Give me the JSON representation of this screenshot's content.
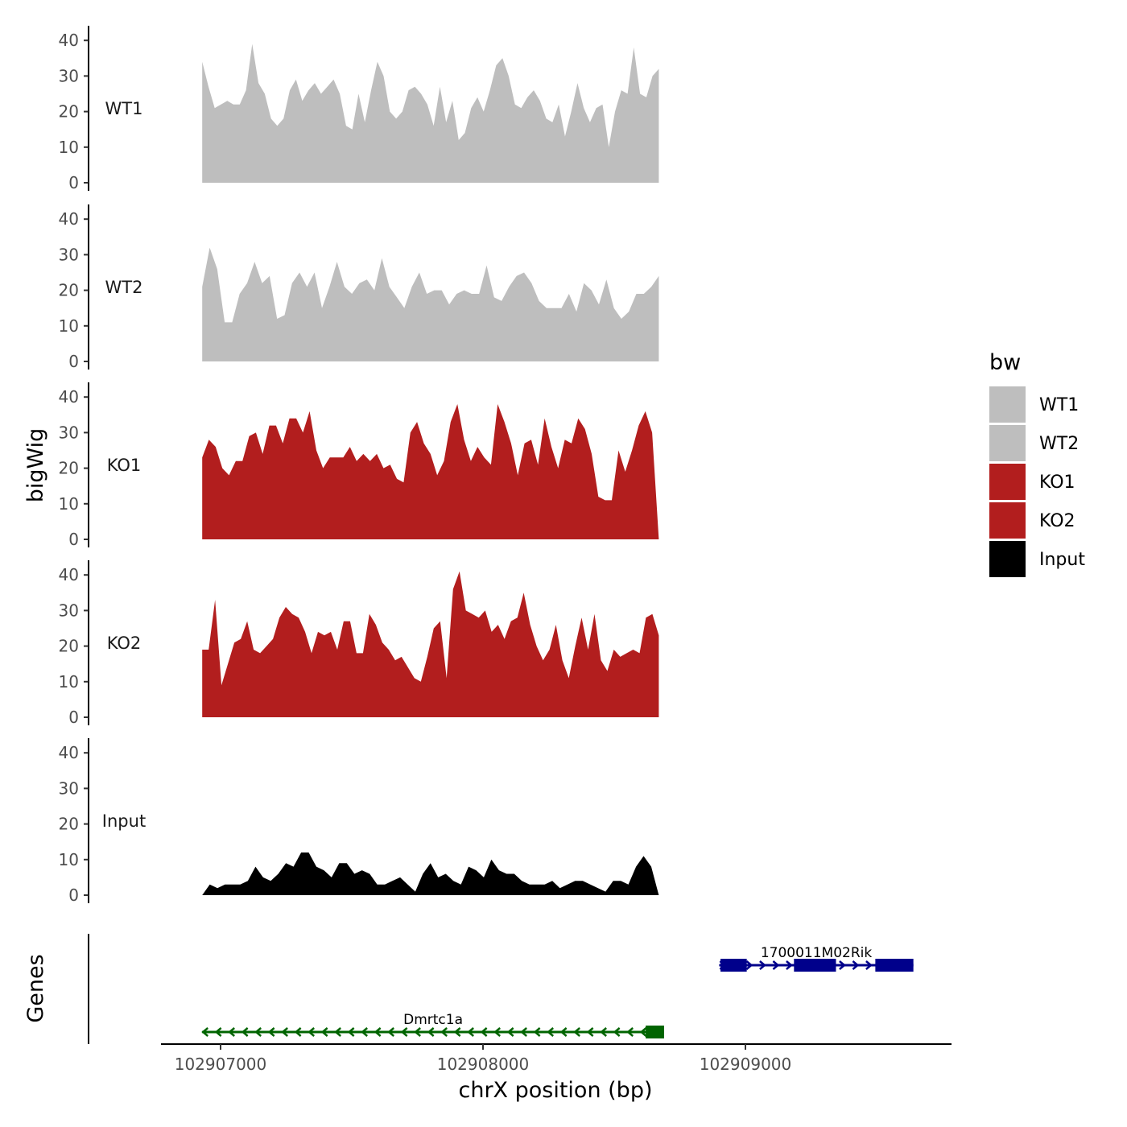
{
  "chart_data": {
    "type": "area",
    "ylabel": "bigWig",
    "xlabel": "chrX position (bp)",
    "xlim": [
      102906800,
      102909800
    ],
    "ylim": [
      0,
      45
    ],
    "x_ticks": [
      102907000,
      102908000,
      102909000
    ],
    "x_tick_labels": [
      "102907000",
      "102908000",
      "102909000"
    ],
    "y_ticks": [
      0,
      10,
      20,
      30,
      40
    ],
    "y_tick_labels": [
      "0",
      "10",
      "20",
      "30",
      "40"
    ],
    "genes_axis_label": "Genes",
    "legend": {
      "title": "bw",
      "entries": [
        {
          "label": "WT1",
          "color": "#bebebe"
        },
        {
          "label": "WT2",
          "color": "#bebebe"
        },
        {
          "label": "KO1",
          "color": "#b21e1e"
        },
        {
          "label": "KO2",
          "color": "#b21e1e"
        },
        {
          "label": "Input",
          "color": "#000000"
        }
      ]
    },
    "x_start": 102906930,
    "x_step": 30,
    "series": [
      {
        "name": "WT1",
        "color": "#bebebe",
        "values": [
          34,
          27,
          21,
          22,
          23,
          22,
          22,
          26,
          39,
          28,
          25,
          18,
          16,
          18,
          26,
          29,
          23,
          26,
          28,
          25,
          27,
          29,
          25,
          16,
          15,
          25,
          17,
          26,
          34,
          30,
          20,
          18,
          20,
          26,
          27,
          25,
          22,
          16,
          27,
          17,
          23,
          12,
          14,
          21,
          24,
          20,
          26,
          33,
          35,
          30,
          22,
          21,
          24,
          26,
          23,
          18,
          17,
          22,
          13,
          20,
          28,
          21,
          17,
          21,
          22,
          10,
          20,
          26,
          25,
          38,
          25,
          24,
          30,
          32
        ]
      },
      {
        "name": "WT2",
        "color": "#bebebe",
        "values": [
          21,
          32,
          26,
          11,
          11,
          19,
          22,
          28,
          22,
          24,
          12,
          13,
          22,
          25,
          21,
          25,
          15,
          21,
          28,
          21,
          19,
          22,
          23,
          20,
          29,
          21,
          18,
          15,
          21,
          25,
          19,
          20,
          20,
          16,
          19,
          20,
          19,
          19,
          27,
          18,
          17,
          21,
          24,
          25,
          22,
          17,
          15,
          15,
          15,
          19,
          14,
          22,
          20,
          16,
          23,
          15,
          12,
          14,
          19,
          19,
          21,
          24
        ]
      },
      {
        "name": "KO1",
        "color": "#b21e1e",
        "values": [
          23,
          28,
          26,
          20,
          18,
          22,
          22,
          29,
          30,
          24,
          32,
          32,
          27,
          34,
          34,
          30,
          36,
          25,
          20,
          23,
          23,
          23,
          26,
          22,
          24,
          22,
          24,
          20,
          21,
          17,
          16,
          30,
          33,
          27,
          24,
          18,
          22,
          33,
          38,
          28,
          22,
          26,
          23,
          21,
          38,
          33,
          27,
          18,
          27,
          28,
          21,
          34,
          26,
          20,
          28,
          27,
          34,
          31,
          24,
          12,
          11,
          11,
          25,
          19,
          25,
          32,
          36,
          30,
          0
        ]
      },
      {
        "name": "KO2",
        "color": "#b21e1e",
        "values": [
          19,
          19,
          33,
          9,
          15,
          21,
          22,
          27,
          19,
          18,
          20,
          22,
          28,
          31,
          29,
          28,
          24,
          18,
          24,
          23,
          24,
          19,
          27,
          27,
          18,
          18,
          29,
          26,
          21,
          19,
          16,
          17,
          14,
          11,
          10,
          17,
          25,
          27,
          11,
          36,
          41,
          30,
          29,
          28,
          30,
          24,
          26,
          22,
          27,
          28,
          35,
          26,
          20,
          16,
          19,
          26,
          16,
          11,
          20,
          28,
          19,
          29,
          16,
          13,
          19,
          17,
          18,
          19,
          18,
          28,
          29,
          23
        ]
      },
      {
        "name": "Input",
        "color": "#000000",
        "values": [
          0,
          3,
          2,
          3,
          3,
          3,
          4,
          8,
          5,
          4,
          6,
          9,
          8,
          12,
          12,
          8,
          7,
          5,
          9,
          9,
          6,
          7,
          6,
          3,
          3,
          4,
          5,
          3,
          1,
          6,
          9,
          5,
          6,
          4,
          3,
          8,
          7,
          5,
          10,
          7,
          6,
          6,
          4,
          3,
          3,
          3,
          4,
          2,
          3,
          4,
          4,
          3,
          2,
          1,
          4,
          4,
          3,
          8,
          11,
          8,
          0
        ]
      }
    ],
    "genes": [
      {
        "name": "1700011M02Rik",
        "strand": "+",
        "color": "#00008b",
        "start": 102908900,
        "end": 102909640,
        "exons": [
          [
            102908905,
            102909005
          ],
          [
            102909185,
            102909345
          ],
          [
            102909495,
            102909640
          ]
        ]
      },
      {
        "name": "Dmrtc1a",
        "strand": "-",
        "color": "#006400",
        "start": 102906930,
        "end": 102908690,
        "exons": [
          [
            102908620,
            102908690
          ]
        ]
      }
    ]
  }
}
